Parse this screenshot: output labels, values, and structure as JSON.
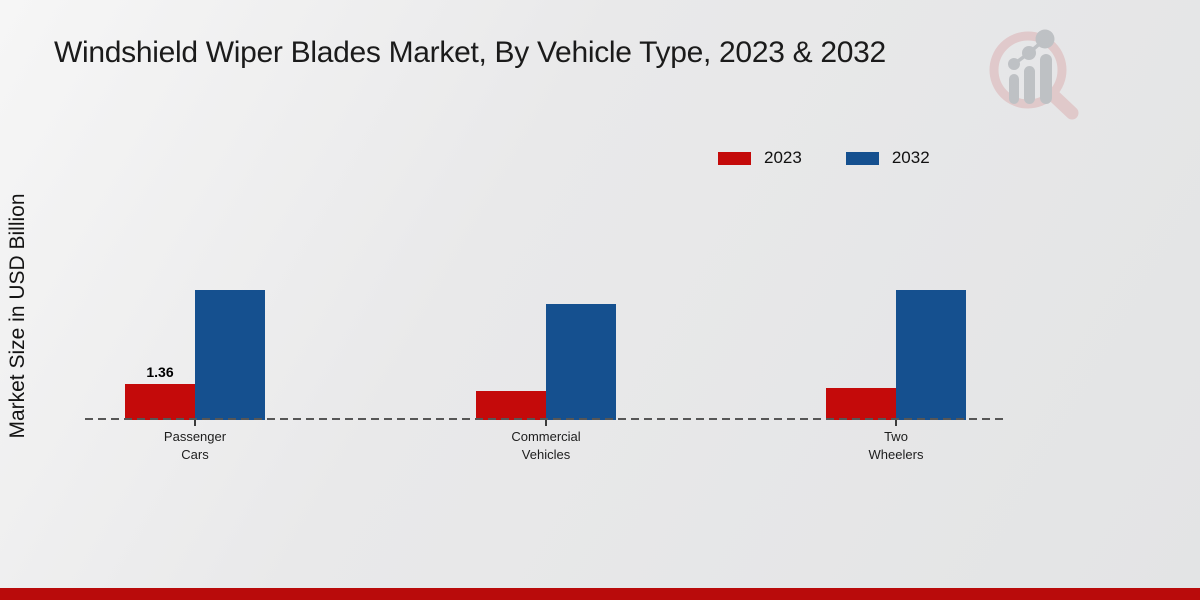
{
  "page": {
    "footer_bar_color": "#b90b0b",
    "background_color": "#e8e8e9"
  },
  "logo": {
    "ring_color": "#dfc4c6",
    "chart_elements_color": "#b8bbbf"
  },
  "chart_data": {
    "type": "bar",
    "title": "Windshield Wiper Blades Market, By Vehicle Type, 2023 & 2032",
    "ylabel": "Market Size in USD Billion",
    "xlabel": "",
    "categories": [
      "Passenger Cars",
      "Commercial Vehicles",
      "Two Wheelers"
    ],
    "category_label_lines": [
      [
        "Passenger",
        "Cars"
      ],
      [
        "Commercial",
        "Vehicles"
      ],
      [
        "Two",
        "Wheelers"
      ]
    ],
    "series": [
      {
        "name": "2023",
        "color": "#c40a0a",
        "values": [
          1.36,
          1.1,
          1.2
        ]
      },
      {
        "name": "2032",
        "color": "#15508f",
        "values": [
          4.9,
          4.4,
          4.9
        ]
      }
    ],
    "value_labels": [
      {
        "series": "2023",
        "category": "Passenger Cars",
        "text": "1.36"
      }
    ],
    "ylim": [
      0,
      5.5
    ],
    "grid": false,
    "legend_position": "top-right",
    "baseline_style": "dashed"
  }
}
